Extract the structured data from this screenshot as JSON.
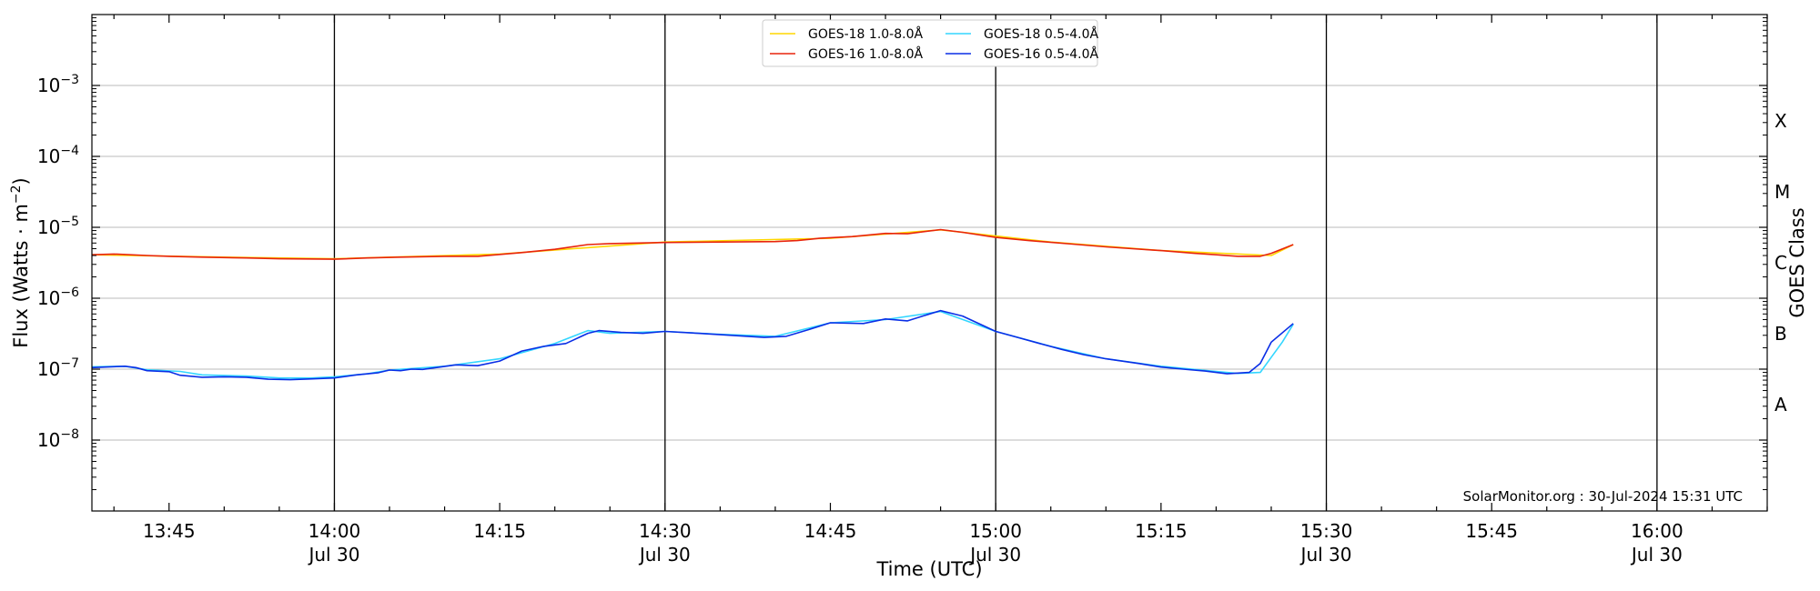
{
  "chart_data": {
    "type": "line",
    "title": "",
    "xlabel": "Time (UTC)",
    "ylabel_prefix": "Flux (Watts · m",
    "ylabel_exp": "−2",
    "ylabel_suffix": ")",
    "right_label": "GOES Class",
    "y_scale": "log",
    "ylim": [
      1e-09,
      0.01
    ],
    "xlim": [
      "13:38",
      "16:10"
    ],
    "y_ticks": [
      {
        "value": 1e-08,
        "base": "10",
        "exp": "−8"
      },
      {
        "value": 1e-07,
        "base": "10",
        "exp": "−7"
      },
      {
        "value": 1e-06,
        "base": "10",
        "exp": "−6"
      },
      {
        "value": 1e-05,
        "base": "10",
        "exp": "−5"
      },
      {
        "value": 0.0001,
        "base": "10",
        "exp": "−4"
      },
      {
        "value": 0.001,
        "base": "10",
        "exp": "−3"
      }
    ],
    "x_ticks": [
      {
        "time": "13:45",
        "label": "13:45",
        "date": ""
      },
      {
        "time": "14:00",
        "label": "14:00",
        "date": "Jul 30"
      },
      {
        "time": "14:15",
        "label": "14:15",
        "date": ""
      },
      {
        "time": "14:30",
        "label": "14:30",
        "date": "Jul 30"
      },
      {
        "time": "14:45",
        "label": "14:45",
        "date": ""
      },
      {
        "time": "15:00",
        "label": "15:00",
        "date": "Jul 30"
      },
      {
        "time": "15:15",
        "label": "15:15",
        "date": ""
      },
      {
        "time": "15:30",
        "label": "15:30",
        "date": "Jul 30"
      },
      {
        "time": "15:45",
        "label": "15:45",
        "date": ""
      },
      {
        "time": "16:00",
        "label": "16:00",
        "date": "Jul 30"
      }
    ],
    "class_levels": [
      {
        "label": "A",
        "range": [
          1e-08,
          1e-07
        ]
      },
      {
        "label": "B",
        "range": [
          1e-07,
          1e-06
        ]
      },
      {
        "label": "C",
        "range": [
          1e-06,
          1e-05
        ]
      },
      {
        "label": "M",
        "range": [
          1e-05,
          0.0001
        ]
      },
      {
        "label": "X",
        "range": [
          0.0001,
          0.001
        ]
      }
    ],
    "horizontal_gridlines": true,
    "vertical_lines_at": [
      "14:00",
      "14:30",
      "15:00",
      "15:30",
      "16:00"
    ],
    "legend_position": "top-center",
    "series": [
      {
        "name": "GOES-18 1.0-8.0Å",
        "color": "#ffd700",
        "points": [
          [
            "13:38",
            4.1e-06
          ],
          [
            "13:50",
            3.8e-06
          ],
          [
            "14:00",
            3.6e-06
          ],
          [
            "14:15",
            4.2e-06
          ],
          [
            "14:30",
            6.2e-06
          ],
          [
            "14:45",
            7e-06
          ],
          [
            "14:55",
            9.2e-06
          ],
          [
            "15:05",
            6.2e-06
          ],
          [
            "15:15",
            4.7e-06
          ],
          [
            "15:25",
            4e-06
          ],
          [
            "15:27",
            5.7e-06
          ]
        ]
      },
      {
        "name": "GOES-16 1.0-8.0Å",
        "color": "#e8240c",
        "points": [
          [
            "13:38",
            4.1e-06
          ],
          [
            "13:40",
            4.2e-06
          ],
          [
            "13:43",
            4e-06
          ],
          [
            "13:45",
            3.9e-06
          ],
          [
            "13:48",
            3.8e-06
          ],
          [
            "13:52",
            3.7e-06
          ],
          [
            "13:55",
            3.6e-06
          ],
          [
            "14:00",
            3.55e-06
          ],
          [
            "14:03",
            3.7e-06
          ],
          [
            "14:06",
            3.8e-06
          ],
          [
            "14:10",
            3.9e-06
          ],
          [
            "14:13",
            3.9e-06
          ],
          [
            "14:17",
            4.4e-06
          ],
          [
            "14:20",
            4.9e-06
          ],
          [
            "14:23",
            5.7e-06
          ],
          [
            "14:25",
            5.9e-06
          ],
          [
            "14:30",
            6.1e-06
          ],
          [
            "14:35",
            6.2e-06
          ],
          [
            "14:40",
            6.3e-06
          ],
          [
            "14:42",
            6.5e-06
          ],
          [
            "14:44",
            7e-06
          ],
          [
            "14:47",
            7.4e-06
          ],
          [
            "14:50",
            8.2e-06
          ],
          [
            "14:52",
            8.1e-06
          ],
          [
            "14:55",
            9.3e-06
          ],
          [
            "14:57",
            8.5e-06
          ],
          [
            "15:00",
            7.2e-06
          ],
          [
            "15:03",
            6.5e-06
          ],
          [
            "15:07",
            5.8e-06
          ],
          [
            "15:10",
            5.3e-06
          ],
          [
            "15:15",
            4.7e-06
          ],
          [
            "15:18",
            4.3e-06
          ],
          [
            "15:20",
            4.1e-06
          ],
          [
            "15:22",
            3.9e-06
          ],
          [
            "15:24",
            3.9e-06
          ],
          [
            "15:25",
            4.3e-06
          ],
          [
            "15:27",
            5.7e-06
          ]
        ]
      },
      {
        "name": "GOES-18 0.5-4.0Å",
        "color": "#33d6ff",
        "points": [
          [
            "13:38",
            1.08e-07
          ],
          [
            "13:41",
            1.1e-07
          ],
          [
            "13:43",
            9.8e-08
          ],
          [
            "13:46",
            9.3e-08
          ],
          [
            "13:48",
            8.3e-08
          ],
          [
            "13:52",
            8e-08
          ],
          [
            "13:55",
            7.5e-08
          ],
          [
            "13:58",
            7.5e-08
          ],
          [
            "14:00",
            7.8e-08
          ],
          [
            "14:03",
            8.6e-08
          ],
          [
            "14:05",
            9.7e-08
          ],
          [
            "14:10",
            1.1e-07
          ],
          [
            "14:15",
            1.4e-07
          ],
          [
            "14:20",
            2.3e-07
          ],
          [
            "14:23",
            3.5e-07
          ],
          [
            "14:25",
            3.2e-07
          ],
          [
            "14:30",
            3.4e-07
          ],
          [
            "14:35",
            3.1e-07
          ],
          [
            "14:40",
            2.9e-07
          ],
          [
            "14:45",
            4.5e-07
          ],
          [
            "14:50",
            5e-07
          ],
          [
            "14:55",
            6.5e-07
          ],
          [
            "15:00",
            3.4e-07
          ],
          [
            "15:05",
            2.1e-07
          ],
          [
            "15:10",
            1.4e-07
          ],
          [
            "15:15",
            1.1e-07
          ],
          [
            "15:20",
            9.3e-08
          ],
          [
            "15:22",
            8.7e-08
          ],
          [
            "15:24",
            9e-08
          ],
          [
            "15:26",
            2.4e-07
          ],
          [
            "15:27",
            4.3e-07
          ]
        ]
      },
      {
        "name": "GOES-16 0.5-4.0Å",
        "color": "#0a2ee6",
        "points": [
          [
            "13:38",
            1.05e-07
          ],
          [
            "13:41",
            1.1e-07
          ],
          [
            "13:42",
            1.05e-07
          ],
          [
            "13:43",
            9.5e-08
          ],
          [
            "13:45",
            9.2e-08
          ],
          [
            "13:46",
            8.2e-08
          ],
          [
            "13:48",
            7.7e-08
          ],
          [
            "13:50",
            7.8e-08
          ],
          [
            "13:52",
            7.7e-08
          ],
          [
            "13:54",
            7.2e-08
          ],
          [
            "13:56",
            7.1e-08
          ],
          [
            "13:58",
            7.3e-08
          ],
          [
            "14:00",
            7.5e-08
          ],
          [
            "14:02",
            8.3e-08
          ],
          [
            "14:04",
            8.9e-08
          ],
          [
            "14:05",
            9.7e-08
          ],
          [
            "14:06",
            9.5e-08
          ],
          [
            "14:07",
            1e-07
          ],
          [
            "14:08",
            9.9e-08
          ],
          [
            "14:11",
            1.15e-07
          ],
          [
            "14:13",
            1.12e-07
          ],
          [
            "14:15",
            1.3e-07
          ],
          [
            "14:17",
            1.8e-07
          ],
          [
            "14:19",
            2.1e-07
          ],
          [
            "14:21",
            2.3e-07
          ],
          [
            "14:23",
            3.2e-07
          ],
          [
            "14:24",
            3.5e-07
          ],
          [
            "14:26",
            3.3e-07
          ],
          [
            "14:28",
            3.2e-07
          ],
          [
            "14:30",
            3.4e-07
          ],
          [
            "14:33",
            3.2e-07
          ],
          [
            "14:36",
            3e-07
          ],
          [
            "14:39",
            2.8e-07
          ],
          [
            "14:41",
            2.9e-07
          ],
          [
            "14:43",
            3.6e-07
          ],
          [
            "14:45",
            4.5e-07
          ],
          [
            "14:48",
            4.4e-07
          ],
          [
            "14:50",
            5.1e-07
          ],
          [
            "14:52",
            4.8e-07
          ],
          [
            "14:54",
            6e-07
          ],
          [
            "14:55",
            6.7e-07
          ],
          [
            "14:57",
            5.6e-07
          ],
          [
            "15:00",
            3.4e-07
          ],
          [
            "15:02",
            2.8e-07
          ],
          [
            "15:04",
            2.3e-07
          ],
          [
            "15:06",
            1.9e-07
          ],
          [
            "15:08",
            1.6e-07
          ],
          [
            "15:10",
            1.4e-07
          ],
          [
            "15:13",
            1.2e-07
          ],
          [
            "15:15",
            1.07e-07
          ],
          [
            "15:17",
            1e-07
          ],
          [
            "15:19",
            9.4e-08
          ],
          [
            "15:21",
            8.6e-08
          ],
          [
            "15:23",
            9e-08
          ],
          [
            "15:24",
            1.2e-07
          ],
          [
            "15:25",
            2.4e-07
          ],
          [
            "15:27",
            4.4e-07
          ]
        ]
      }
    ]
  },
  "credit": "SolarMonitor.org : 30-Jul-2024 15:31 UTC",
  "colors": {
    "axis": "#000000",
    "gridline": "#bbbbbb",
    "vertical_line": "#000000",
    "background": "#ffffff"
  }
}
